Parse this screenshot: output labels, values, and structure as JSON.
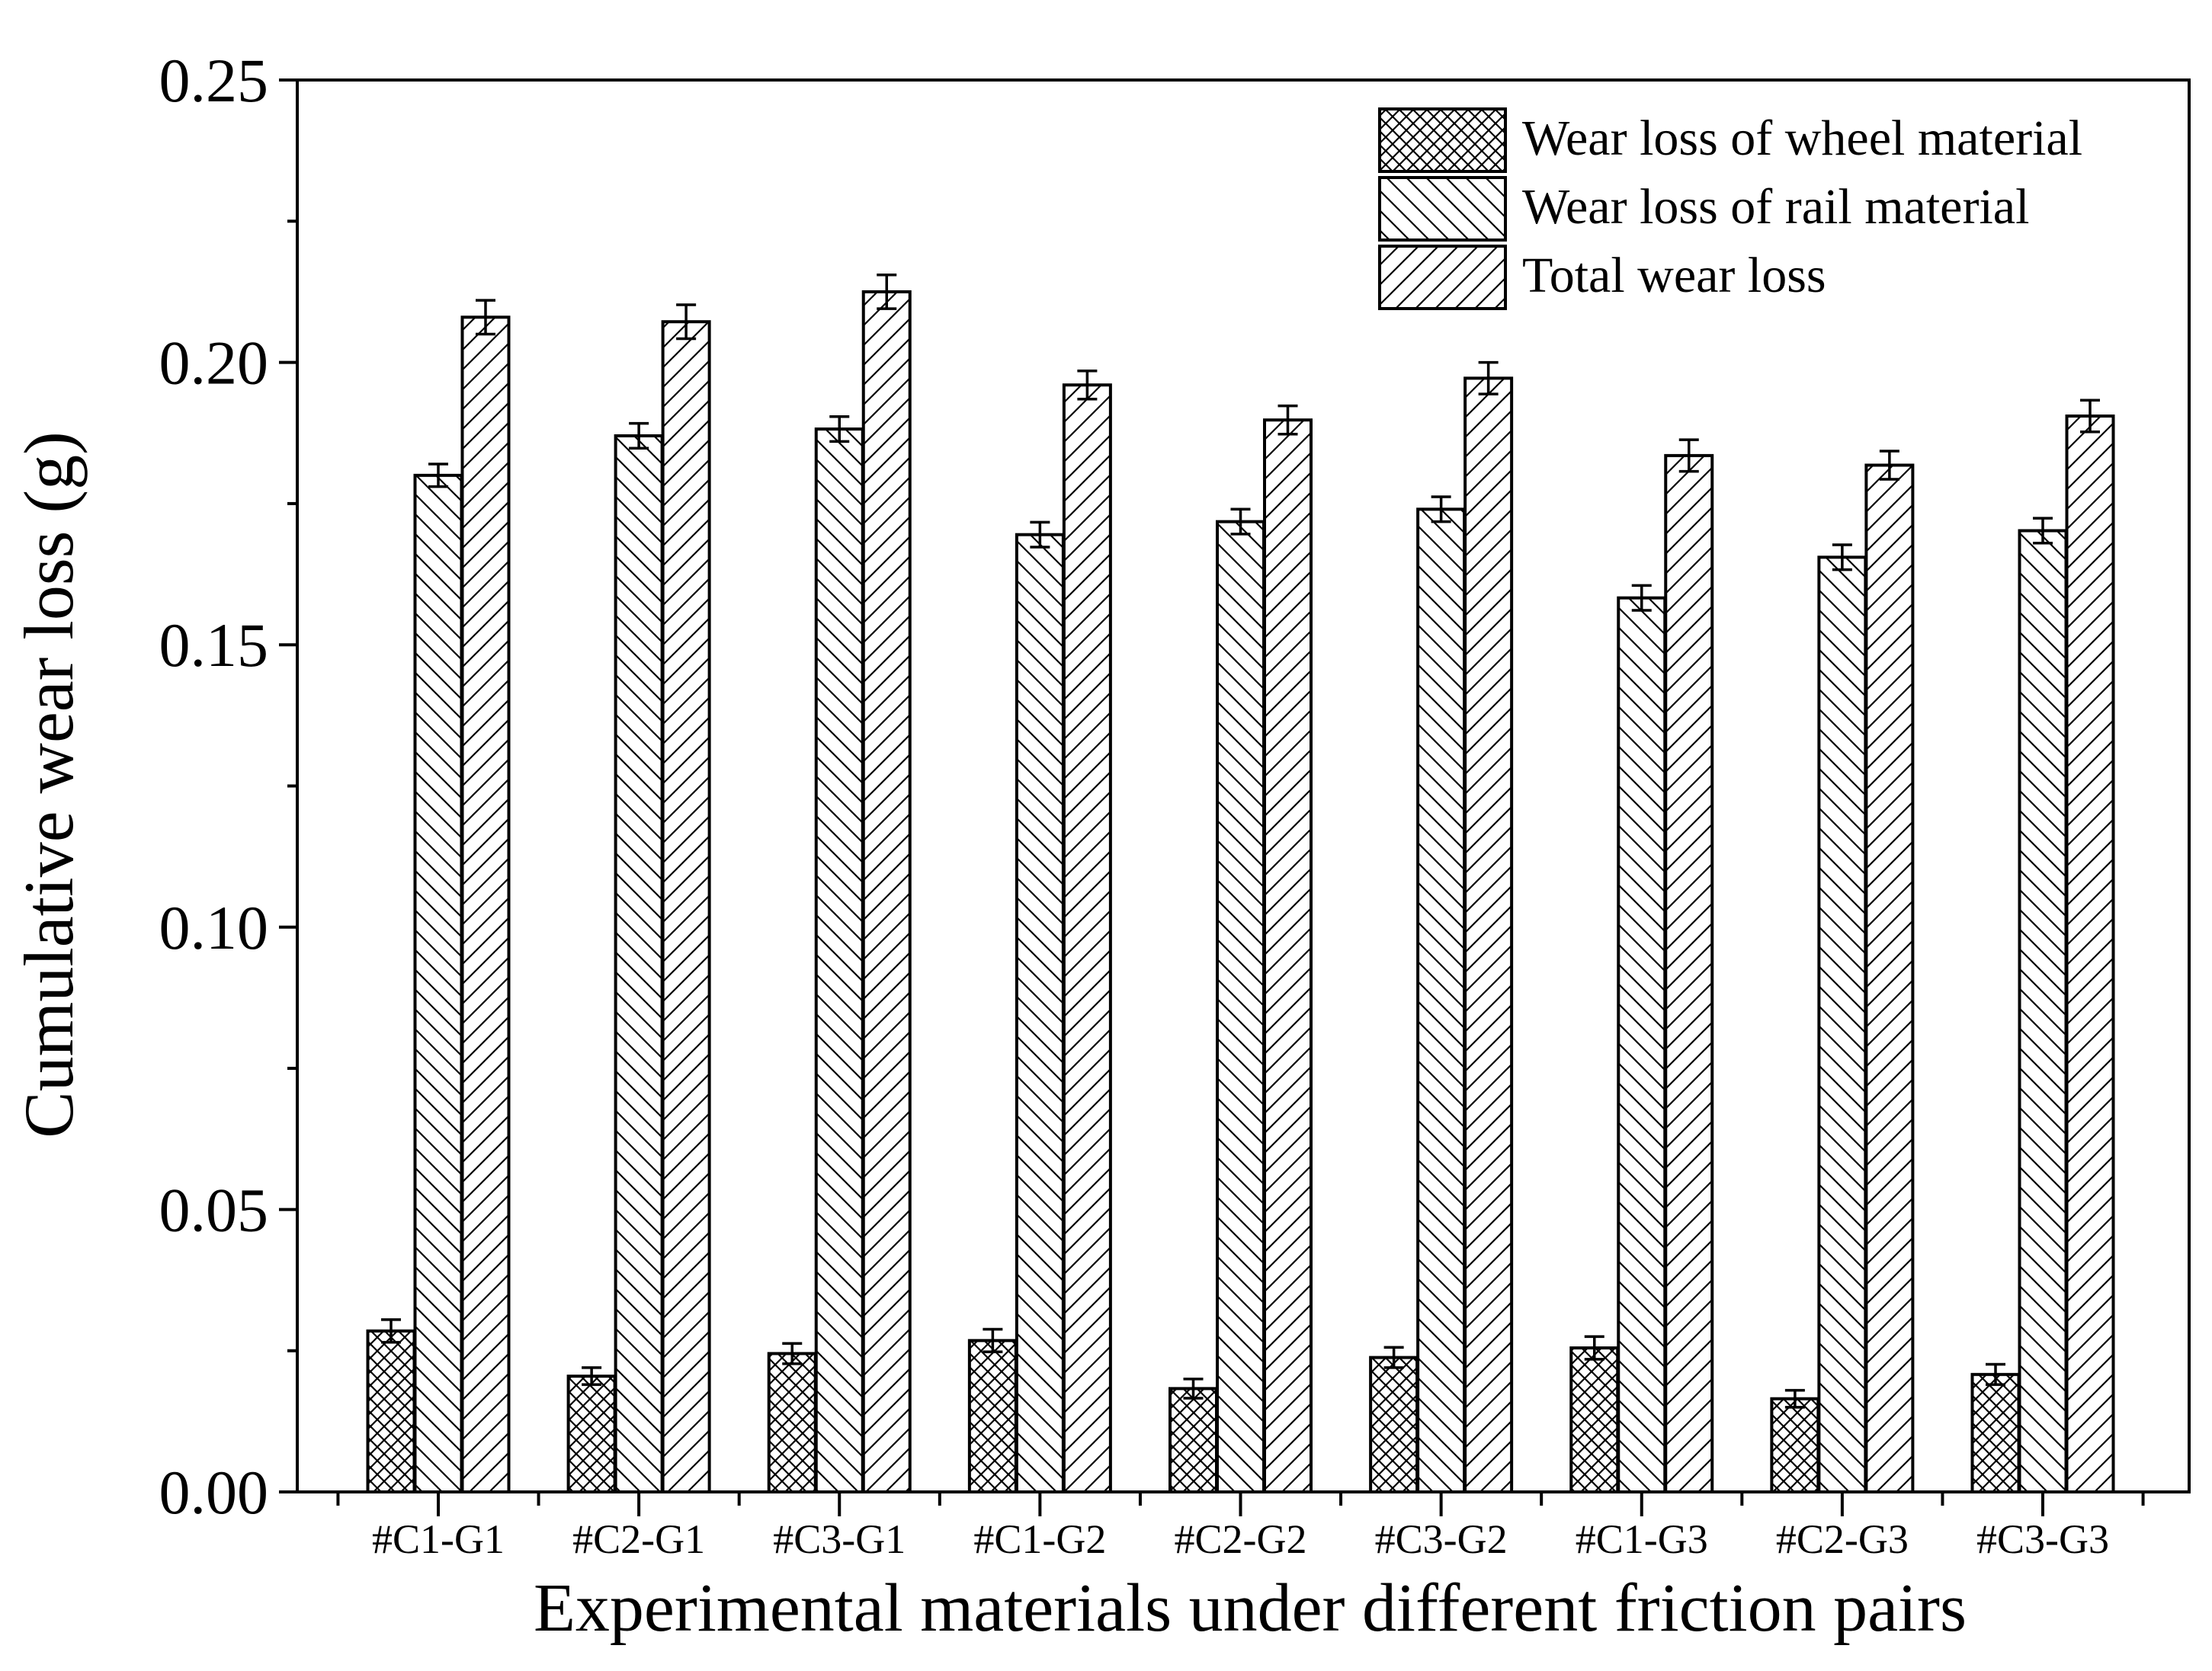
{
  "chart_data": {
    "type": "bar",
    "title": "",
    "xlabel": "Experimental materials under different friction pairs",
    "ylabel": "Cumulative wear loss (g)",
    "ylim": [
      0,
      0.25
    ],
    "yticks": [
      0.0,
      0.05,
      0.1,
      0.15,
      0.2,
      0.25
    ],
    "ytick_labels": [
      "0.00",
      "0.05",
      "0.10",
      "0.15",
      "0.20",
      "0.25"
    ],
    "grid": false,
    "legend_position": "top-right",
    "categories": [
      "#C1-G1",
      "#C2-G1",
      "#C3-G1",
      "#C1-G2",
      "#C2-G2",
      "#C3-G2",
      "#C1-G3",
      "#C2-G3",
      "#C3-G3"
    ],
    "series": [
      {
        "name": "Wear loss of wheel material",
        "pattern": "crosshatch",
        "values": [
          0.0285,
          0.0205,
          0.0245,
          0.0268,
          0.0183,
          0.0238,
          0.0255,
          0.0165,
          0.0208
        ],
        "errors": [
          0.002,
          0.0015,
          0.0018,
          0.002,
          0.0017,
          0.0018,
          0.002,
          0.0015,
          0.0018
        ]
      },
      {
        "name": "Wear loss of rail material",
        "pattern": "backslash",
        "values": [
          0.18,
          0.187,
          0.1882,
          0.1695,
          0.1718,
          0.174,
          0.1583,
          0.1655,
          0.1702
        ],
        "errors": [
          0.002,
          0.0022,
          0.0022,
          0.0022,
          0.0022,
          0.0022,
          0.0022,
          0.0022,
          0.0022
        ]
      },
      {
        "name": "Total wear loss",
        "pattern": "slash",
        "values": [
          0.208,
          0.2072,
          0.2125,
          0.196,
          0.1898,
          0.1972,
          0.1835,
          0.1818,
          0.1905
        ],
        "errors": [
          0.003,
          0.003,
          0.003,
          0.0025,
          0.0025,
          0.0028,
          0.0028,
          0.0025,
          0.0028
        ]
      }
    ]
  }
}
